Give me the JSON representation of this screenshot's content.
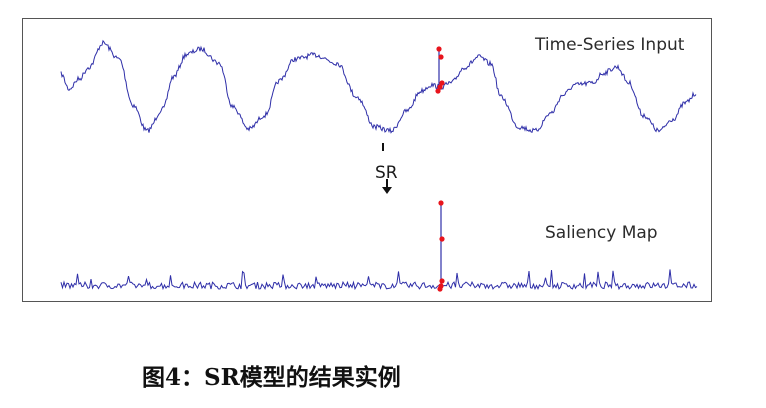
{
  "figure": {
    "top_label": "Time-Series Input",
    "bottom_label": "Saliency Map",
    "arrow_label": "SR",
    "line_color": "#2e2ea8",
    "anomaly_color": "#e8141c"
  },
  "caption": "图4：SR模型的结果实例"
}
